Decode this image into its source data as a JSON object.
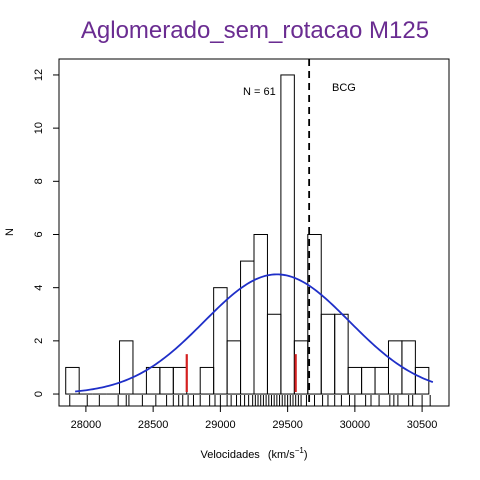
{
  "chart_data": {
    "type": "histogram",
    "title": "Aglomerado_sem_rotacao M125",
    "title_color": "#6A2C91",
    "xlabel": "Velocidades",
    "xlabel_unit": "(km/s",
    "xlabel_unit_exp": "−1",
    "xlabel_unit_close": ")",
    "ylabel": "N",
    "xlim": [
      27800,
      30700
    ],
    "ylim": [
      -0.45,
      12.6
    ],
    "x_ticks": [
      28000,
      28500,
      29000,
      29500,
      30000,
      30500
    ],
    "y_ticks": [
      0,
      2,
      4,
      6,
      8,
      10,
      12
    ],
    "bin_width": 100,
    "bins": [
      {
        "x0": 27850,
        "count": 1
      },
      {
        "x0": 27950,
        "count": 0
      },
      {
        "x0": 28050,
        "count": 0
      },
      {
        "x0": 28150,
        "count": 0
      },
      {
        "x0": 28250,
        "count": 2
      },
      {
        "x0": 28350,
        "count": 0
      },
      {
        "x0": 28450,
        "count": 1
      },
      {
        "x0": 28550,
        "count": 1
      },
      {
        "x0": 28650,
        "count": 1
      },
      {
        "x0": 28750,
        "count": 0
      },
      {
        "x0": 28850,
        "count": 1
      },
      {
        "x0": 28950,
        "count": 4
      },
      {
        "x0": 29050,
        "count": 2
      },
      {
        "x0": 29150,
        "count": 5
      },
      {
        "x0": 29250,
        "count": 6
      },
      {
        "x0": 29350,
        "count": 3
      },
      {
        "x0": 29450,
        "count": 12
      },
      {
        "x0": 29550,
        "count": 2
      },
      {
        "x0": 29650,
        "count": 6
      },
      {
        "x0": 29750,
        "count": 3
      },
      {
        "x0": 29850,
        "count": 3
      },
      {
        "x0": 29950,
        "count": 1
      },
      {
        "x0": 30050,
        "count": 1
      },
      {
        "x0": 30150,
        "count": 1
      },
      {
        "x0": 30250,
        "count": 2
      },
      {
        "x0": 30350,
        "count": 2
      },
      {
        "x0": 30450,
        "count": 1
      }
    ],
    "gaussian": {
      "mean": 29420,
      "sd": 540,
      "peak": 4.5,
      "x_range": [
        27920,
        30580
      ],
      "color": "#1F2FC8"
    },
    "bcg_velocity": 29660,
    "bcg_label": "BCG",
    "n_label": "N =  61",
    "red_markers": [
      {
        "x": 28750,
        "height": 1.5
      },
      {
        "x": 29560,
        "height": 1.5
      }
    ],
    "red_color": "#D42020",
    "rug": [
      27880,
      28010,
      28100,
      28240,
      28300,
      28320,
      28420,
      28520,
      28600,
      28650,
      28690,
      28720,
      28760,
      28800,
      28850,
      28920,
      28960,
      29000,
      29050,
      29080,
      29120,
      29150,
      29180,
      29210,
      29240,
      29260,
      29280,
      29300,
      29320,
      29340,
      29360,
      29380,
      29400,
      29420,
      29440,
      29460,
      29480,
      29500,
      29520,
      29540,
      29560,
      29580,
      29600,
      29640,
      29700,
      29760,
      29800,
      29850,
      29900,
      29960,
      30000,
      30080,
      30120,
      30180,
      30260,
      30290,
      30320,
      30400,
      30430,
      30500,
      30560
    ],
    "grid": false,
    "legend": "none"
  }
}
